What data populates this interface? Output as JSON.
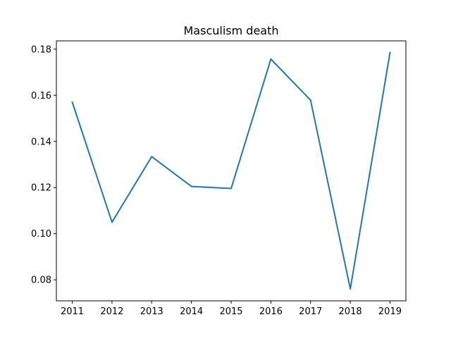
{
  "chart_data": {
    "type": "line",
    "title": "Masculism death",
    "xlabel": "",
    "ylabel": "",
    "x": [
      2011,
      2012,
      2013,
      2014,
      2015,
      2016,
      2017,
      2018,
      2019
    ],
    "series": [
      {
        "values": [
          0.157,
          0.105,
          0.1334,
          0.1205,
          0.1196,
          0.1757,
          0.1579,
          0.0761,
          0.1785
        ],
        "color": "#1f77b4"
      }
    ],
    "xlim": [
      2010.6,
      2019.4
    ],
    "ylim": [
      0.0709,
      0.1836
    ],
    "x_ticks": [
      "2011",
      "2012",
      "2013",
      "2014",
      "2015",
      "2016",
      "2017",
      "2018",
      "2019"
    ],
    "y_ticks": [
      "0.08",
      "0.10",
      "0.12",
      "0.14",
      "0.16",
      "0.18"
    ],
    "grid": false,
    "legend": "none"
  }
}
